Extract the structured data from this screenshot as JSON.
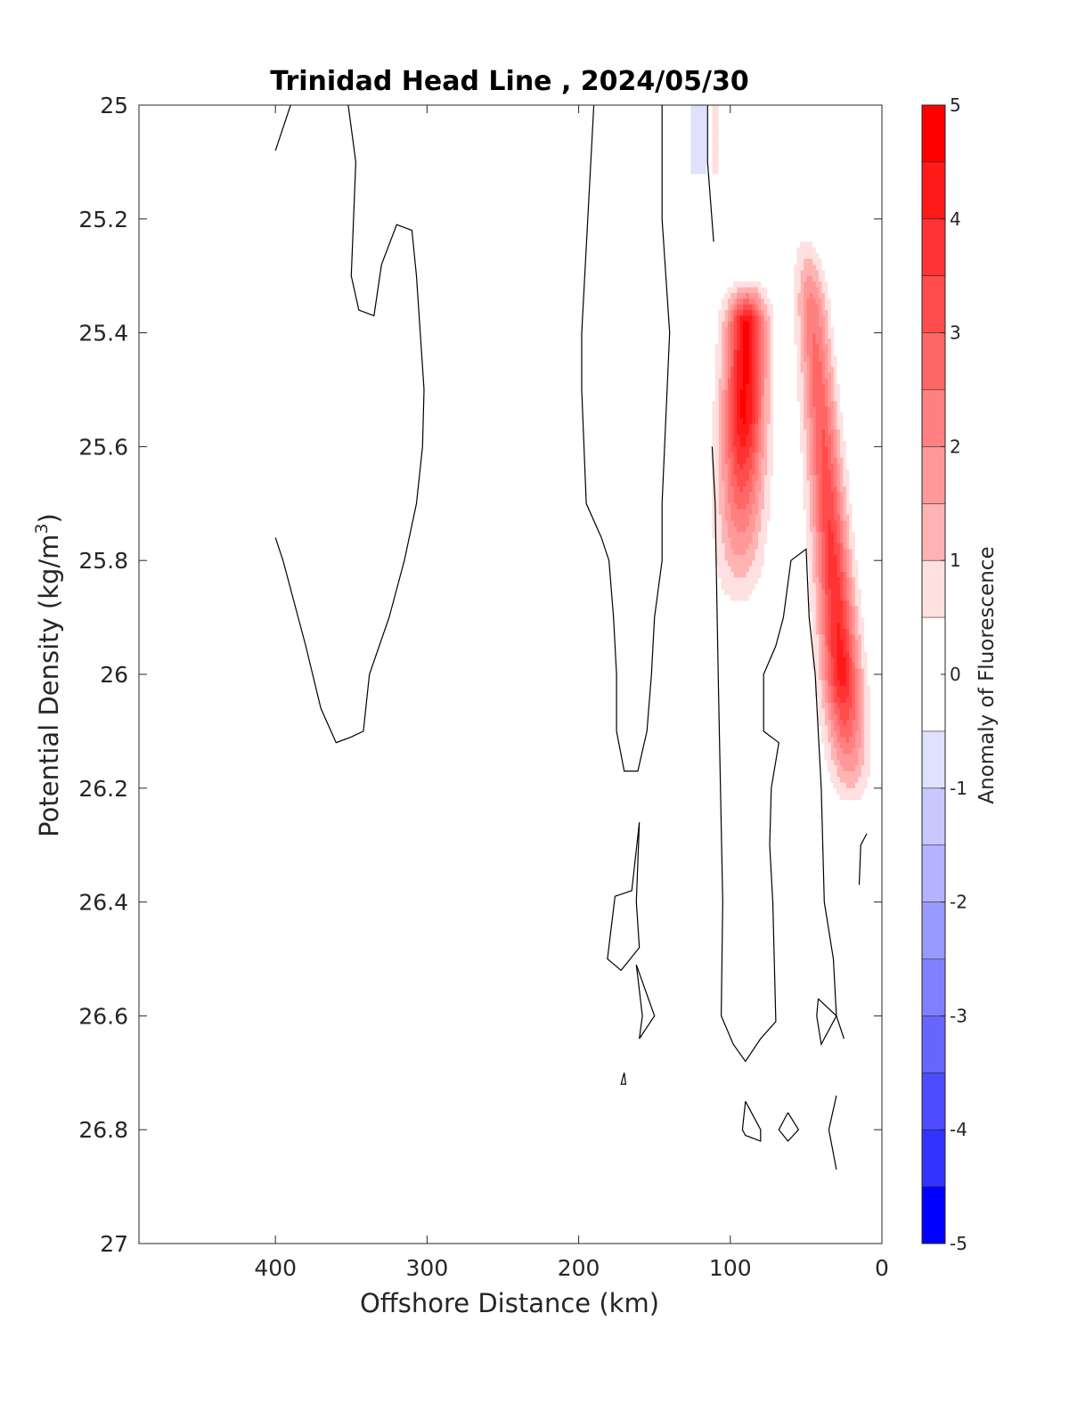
{
  "chart_data": {
    "type": "heatmap",
    "title": "Trinidad Head Line , 2024/05/30",
    "xlabel": "Offshore Distance (km)",
    "ylabel": "Potential Density (kg/m",
    "ylabel_sup": "3",
    "ylabel_close": ")",
    "colorbar_label": "Anomaly of Fluorescence",
    "xlim": [
      0,
      490
    ],
    "x_reversed": true,
    "ylim": [
      25,
      27
    ],
    "y_reversed": true,
    "x_ticks": [
      400,
      300,
      200,
      100,
      0
    ],
    "y_ticks": [
      25,
      25.2,
      25.4,
      25.6,
      25.8,
      26,
      26.2,
      26.4,
      26.6,
      26.8,
      27
    ],
    "y_tick_labels": [
      "25",
      "25.2",
      "25.4",
      "25.6",
      "25.8",
      "26",
      "26.2",
      "26.4",
      "26.6",
      "26.8",
      "27"
    ],
    "colorbar_ticks": [
      5,
      4,
      3,
      2,
      1,
      0,
      -1,
      -2,
      -3,
      -4,
      -5
    ],
    "colorbar_range": [
      -5,
      5
    ],
    "colors": {
      "levels": [
        {
          "from": 4.5,
          "to": 5,
          "color": "#ff0000"
        },
        {
          "from": 4,
          "to": 4.5,
          "color": "#ff1a1a"
        },
        {
          "from": 3.5,
          "to": 4,
          "color": "#ff3333"
        },
        {
          "from": 3,
          "to": 3.5,
          "color": "#ff4d4d"
        },
        {
          "from": 2.5,
          "to": 3,
          "color": "#ff6666"
        },
        {
          "from": 2,
          "to": 2.5,
          "color": "#ff8080"
        },
        {
          "from": 1.5,
          "to": 2,
          "color": "#ff9999"
        },
        {
          "from": 1,
          "to": 1.5,
          "color": "#ffb3b3"
        },
        {
          "from": 0.5,
          "to": 1,
          "color": "#ffe0e0"
        },
        {
          "from": -0.5,
          "to": 0.5,
          "color": "#ffffff"
        },
        {
          "from": -1,
          "to": -0.5,
          "color": "#e0e0ff"
        },
        {
          "from": -1.5,
          "to": -1,
          "color": "#c8c8ff"
        },
        {
          "from": -2,
          "to": -1.5,
          "color": "#b3b3ff"
        },
        {
          "from": -2.5,
          "to": -2,
          "color": "#9999ff"
        },
        {
          "from": -3,
          "to": -2.5,
          "color": "#8080ff"
        },
        {
          "from": -3.5,
          "to": -3,
          "color": "#6666ff"
        },
        {
          "from": -4,
          "to": -3.5,
          "color": "#4d4dff"
        },
        {
          "from": -4.5,
          "to": -4,
          "color": "#3333ff"
        },
        {
          "from": -5,
          "to": -4.5,
          "color": "#0000ff"
        }
      ]
    },
    "positive_anomaly": {
      "x_columns": [
        110,
        100,
        90,
        80,
        70,
        60,
        50,
        40,
        30,
        20,
        10
      ],
      "y_rows": [
        25.2,
        25.3,
        25.4,
        25.5,
        25.6,
        25.7,
        25.8,
        25.9,
        26.0,
        26.1,
        26.2
      ],
      "peak_offshore": {
        "x": 90,
        "y": 25.45,
        "value": 4.5
      },
      "peak_nearshore": {
        "x": 25,
        "y": 25.95,
        "value": 4.5
      }
    },
    "negative_anomaly": {
      "x": 122,
      "y": 25.05,
      "value": -0.7
    },
    "zero_contours": [
      {
        "points": [
          [
            400,
            25.08
          ],
          [
            390,
            25.0
          ]
        ]
      },
      {
        "points": [
          [
            352,
            25.0
          ],
          [
            347,
            25.1
          ],
          [
            350,
            25.3
          ],
          [
            345,
            25.36
          ],
          [
            335,
            25.37
          ],
          [
            330,
            25.28
          ],
          [
            320,
            25.21
          ],
          [
            310,
            25.22
          ],
          [
            307,
            25.3
          ],
          [
            302,
            25.5
          ],
          [
            303,
            25.6
          ],
          [
            307,
            25.7
          ],
          [
            315,
            25.8
          ],
          [
            325,
            25.9
          ],
          [
            338,
            26.0
          ],
          [
            342,
            26.1
          ],
          [
            350,
            26.11
          ],
          [
            360,
            26.12
          ],
          [
            370,
            26.06
          ],
          [
            380,
            25.95
          ],
          [
            395,
            25.8
          ],
          [
            400,
            25.76
          ]
        ]
      },
      {
        "points": [
          [
            190,
            25.0
          ],
          [
            192,
            25.1
          ],
          [
            198,
            25.4
          ],
          [
            198,
            25.5
          ],
          [
            195,
            25.7
          ],
          [
            185,
            25.76
          ],
          [
            180,
            25.8
          ],
          [
            177,
            25.9
          ],
          [
            175,
            26.0
          ],
          [
            175,
            26.1
          ],
          [
            170,
            26.17
          ],
          [
            161,
            26.17
          ],
          [
            155,
            26.1
          ],
          [
            152,
            26.0
          ],
          [
            150,
            25.9
          ],
          [
            145,
            25.8
          ],
          [
            145,
            25.7
          ],
          [
            140,
            25.4
          ],
          [
            145,
            25.2
          ],
          [
            145,
            25.0
          ]
        ]
      },
      {
        "points": [
          [
            115,
            25.0
          ],
          [
            115,
            25.1
          ],
          [
            111,
            25.24
          ]
        ]
      },
      {
        "points": [
          [
            112,
            25.6
          ],
          [
            110,
            25.7
          ],
          [
            108,
            26.0
          ],
          [
            105,
            26.4
          ],
          [
            106,
            26.6
          ],
          [
            98,
            26.65
          ],
          [
            90,
            26.68
          ],
          [
            80,
            26.64
          ],
          [
            70,
            26.61
          ],
          [
            72,
            26.4
          ],
          [
            74,
            26.3
          ],
          [
            73,
            26.2
          ],
          [
            68,
            26.12
          ],
          [
            78,
            26.1
          ],
          [
            78,
            26.0
          ],
          [
            70,
            25.95
          ],
          [
            65,
            25.9
          ],
          [
            60,
            25.8
          ],
          [
            50,
            25.78
          ],
          [
            48,
            25.9
          ],
          [
            44,
            26.0
          ],
          [
            40,
            26.2
          ],
          [
            38,
            26.4
          ],
          [
            32,
            26.5
          ],
          [
            30,
            26.6
          ],
          [
            25,
            26.64
          ]
        ]
      },
      {
        "points": [
          [
            160,
            26.26
          ],
          [
            165,
            26.38
          ],
          [
            176,
            26.39
          ],
          [
            181,
            26.5
          ],
          [
            172,
            26.52
          ],
          [
            160,
            26.48
          ],
          [
            162,
            26.4
          ],
          [
            160,
            26.26
          ]
        ]
      },
      {
        "points": [
          [
            162,
            26.51
          ],
          [
            158,
            26.6
          ],
          [
            160,
            26.64
          ],
          [
            150,
            26.6
          ],
          [
            162,
            26.51
          ]
        ]
      },
      {
        "points": [
          [
            170,
            26.7
          ],
          [
            172,
            26.72
          ],
          [
            169,
            26.72
          ],
          [
            170,
            26.7
          ]
        ]
      },
      {
        "points": [
          [
            90,
            26.75
          ],
          [
            80,
            26.8
          ],
          [
            80,
            26.82
          ],
          [
            90,
            26.81
          ],
          [
            92,
            26.8
          ],
          [
            90,
            26.75
          ]
        ]
      },
      {
        "points": [
          [
            62,
            26.77
          ],
          [
            55,
            26.8
          ],
          [
            62,
            26.82
          ],
          [
            68,
            26.8
          ],
          [
            62,
            26.77
          ]
        ]
      },
      {
        "points": [
          [
            30,
            26.74
          ],
          [
            35,
            26.8
          ],
          [
            30,
            26.87
          ]
        ]
      },
      {
        "points": [
          [
            42,
            26.57
          ],
          [
            30,
            26.6
          ],
          [
            40,
            26.65
          ],
          [
            43,
            26.6
          ],
          [
            42,
            26.57
          ]
        ]
      },
      {
        "points": [
          [
            10,
            26.28
          ],
          [
            14,
            26.3
          ],
          [
            15,
            26.37
          ]
        ]
      }
    ]
  }
}
